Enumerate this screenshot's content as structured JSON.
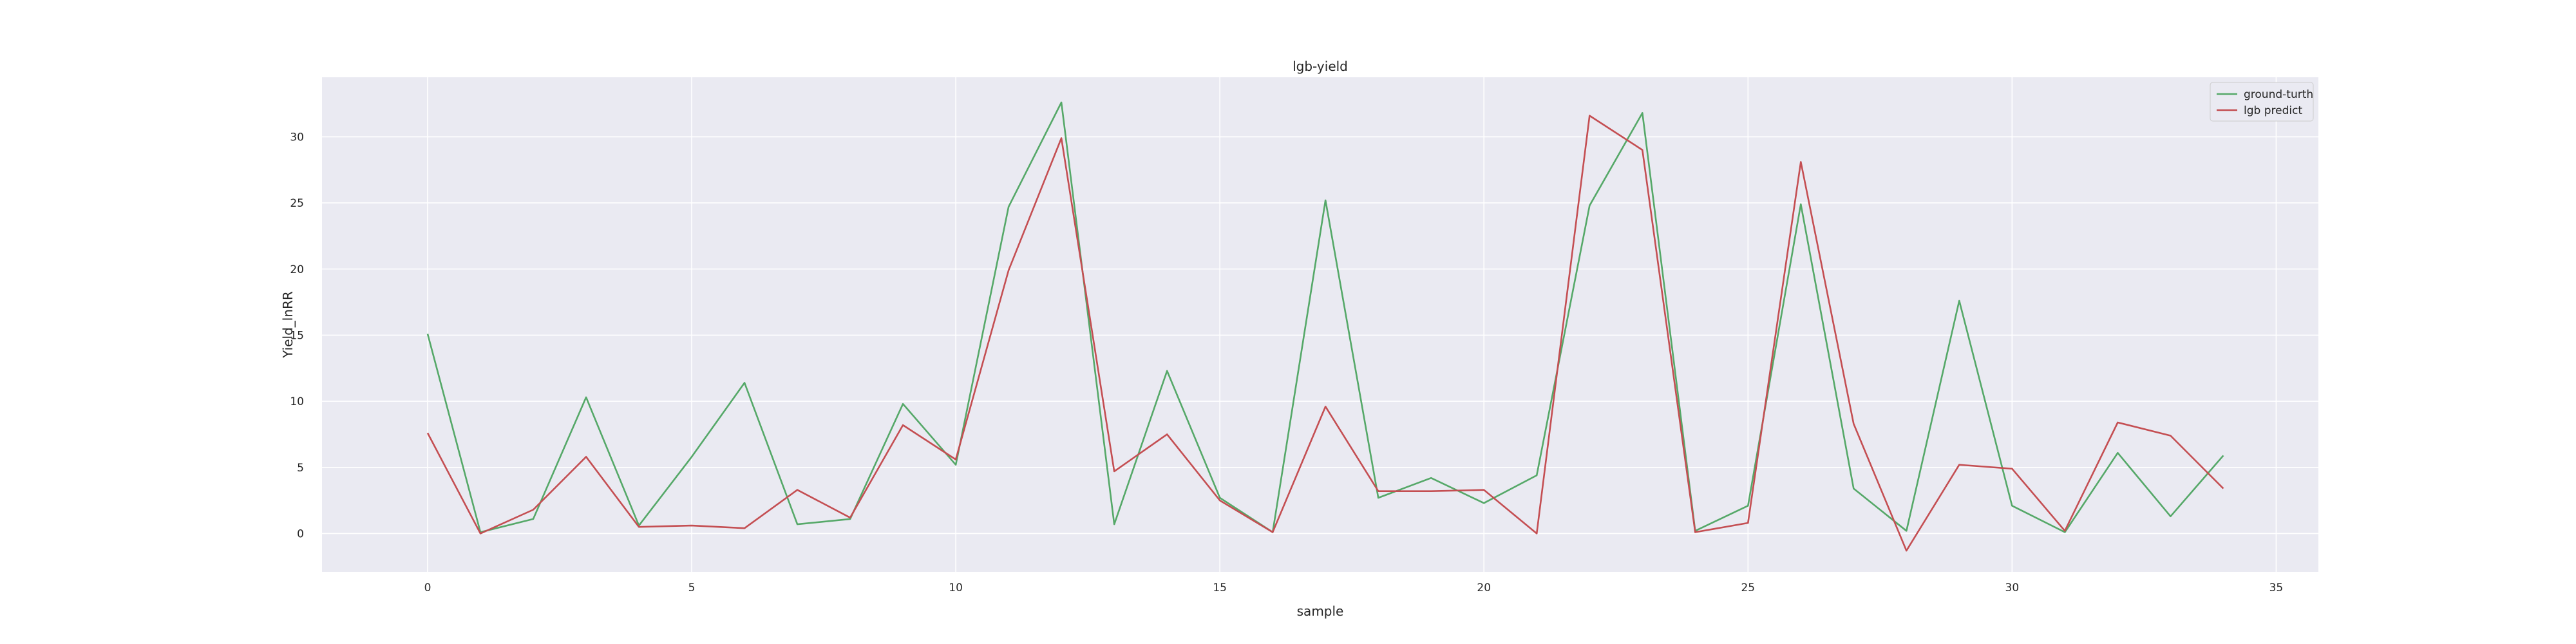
{
  "chart_data": {
    "type": "line",
    "title": "lgb-yield",
    "xlabel": "sample",
    "ylabel": "Yield_lnRR",
    "xlim": [
      -2,
      35.8
    ],
    "ylim": [
      -2.9,
      34.5
    ],
    "xticks": [
      0,
      5,
      10,
      15,
      20,
      25,
      30,
      35
    ],
    "yticks": [
      0,
      5,
      10,
      15,
      20,
      25,
      30
    ],
    "grid": true,
    "legend_position": "top-right",
    "x": [
      0,
      1,
      2,
      3,
      4,
      5,
      6,
      7,
      8,
      9,
      10,
      11,
      12,
      13,
      14,
      15,
      16,
      17,
      18,
      19,
      20,
      21,
      22,
      23,
      24,
      25,
      26,
      27,
      28,
      29,
      30,
      31,
      32,
      33,
      34
    ],
    "series": [
      {
        "name": "ground-turth",
        "color": "#55a868",
        "values": [
          15.1,
          0.1,
          1.1,
          10.3,
          0.6,
          5.8,
          11.4,
          0.7,
          1.1,
          9.8,
          5.2,
          24.7,
          32.6,
          0.7,
          12.3,
          2.7,
          0.1,
          25.2,
          2.7,
          4.2,
          2.3,
          4.4,
          24.8,
          31.8,
          0.2,
          2.1,
          24.9,
          3.4,
          0.2,
          17.6,
          2.1,
          0.1,
          6.1,
          1.3,
          5.9
        ]
      },
      {
        "name": "lgb predict",
        "color": "#c44e52",
        "values": [
          7.6,
          0.0,
          1.8,
          5.8,
          0.5,
          0.6,
          0.4,
          3.3,
          1.2,
          8.2,
          5.6,
          19.9,
          29.9,
          4.7,
          7.5,
          2.5,
          0.1,
          9.6,
          3.2,
          3.2,
          3.3,
          -0.0,
          31.6,
          29.0,
          0.1,
          0.8,
          28.1,
          8.3,
          -1.3,
          5.2,
          4.9,
          0.2,
          8.4,
          7.4,
          3.4
        ]
      }
    ]
  }
}
